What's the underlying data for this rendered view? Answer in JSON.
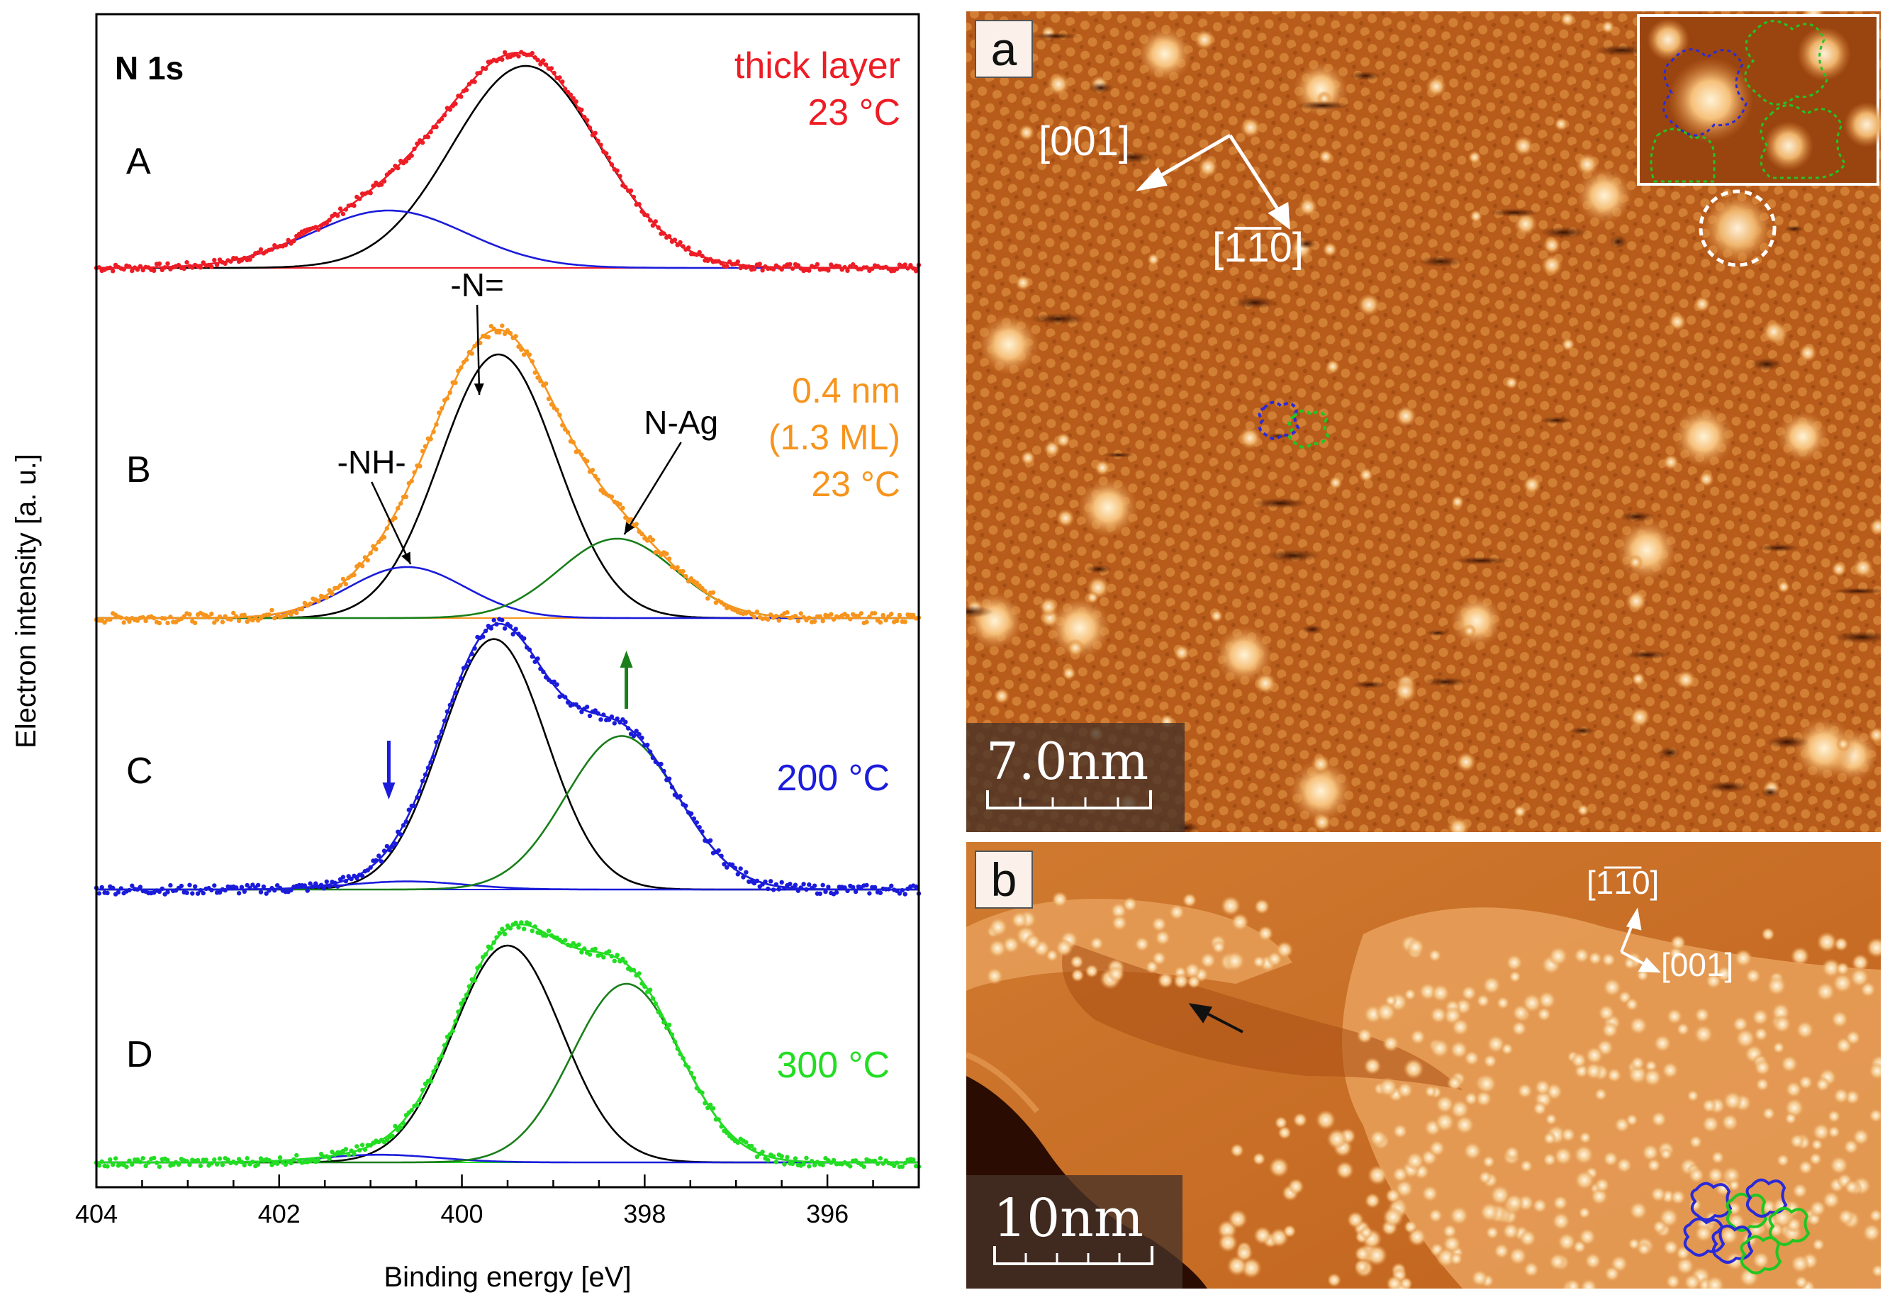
{
  "chart_data": [
    {
      "type": "line",
      "subtype": "stacked XPS spectra with peak fits",
      "corner_label": "N 1s",
      "xlabel": "Binding energy [eV]",
      "ylabel": "Electron intensity [a. u.]",
      "xlim": [
        404,
        395
      ],
      "x_reversed": true,
      "x_ticks": [
        404,
        402,
        400,
        398,
        396
      ],
      "grid": false,
      "panels": [
        {
          "id": "A",
          "label": "A",
          "condition": [
            "thick layer",
            "23 °C"
          ],
          "color": "#ee1c25",
          "envelope_color": "#ee1c25",
          "components": [
            {
              "name": "",
              "center": 399.3,
              "height": 0.95,
              "fwhm": 1.9,
              "color": "#000000"
            },
            {
              "name": "",
              "center": 400.8,
              "height": 0.27,
              "fwhm": 2.0,
              "color": "#1b1bdb"
            }
          ]
        },
        {
          "id": "B",
          "label": "B",
          "condition": [
            "0.4 nm",
            "(1.3 ML)",
            "23 °C"
          ],
          "color": "#f7941d",
          "envelope_color": "#f7941d",
          "components": [
            {
              "name": "-N=",
              "center": 399.6,
              "height": 0.93,
              "fwhm": 1.5,
              "color": "#000000"
            },
            {
              "name": "-NH-",
              "center": 400.6,
              "height": 0.18,
              "fwhm": 1.5,
              "color": "#1b1bdb"
            },
            {
              "name": "N-Ag",
              "center": 398.3,
              "height": 0.28,
              "fwhm": 1.5,
              "color": "#1a7f1a"
            }
          ],
          "peak_annotations": [
            "-N=",
            "-NH-",
            "N-Ag"
          ]
        },
        {
          "id": "C",
          "label": "C",
          "condition": [
            "200 °C"
          ],
          "color": "#1b1bdb",
          "envelope_color": "#1b1bdb",
          "components": [
            {
              "name": "",
              "center": 399.65,
              "height": 0.93,
              "fwhm": 1.35,
              "color": "#000000"
            },
            {
              "name": "",
              "center": 400.6,
              "height": 0.03,
              "fwhm": 1.5,
              "color": "#1b1bdb"
            },
            {
              "name": "",
              "center": 398.25,
              "height": 0.57,
              "fwhm": 1.45,
              "color": "#1a7f1a"
            }
          ],
          "arrows": [
            {
              "x": 400.8,
              "direction": "down",
              "color": "#1b1bdb"
            },
            {
              "x": 398.2,
              "direction": "up",
              "color": "#1a7f1a"
            }
          ]
        },
        {
          "id": "D",
          "label": "D",
          "condition": [
            "300 °C"
          ],
          "color": "#22dd22",
          "envelope_color": "#22dd22",
          "components": [
            {
              "name": "",
              "center": 399.5,
              "height": 0.85,
              "fwhm": 1.4,
              "color": "#000000"
            },
            {
              "name": "",
              "center": 400.9,
              "height": 0.03,
              "fwhm": 1.5,
              "color": "#1b1bdb"
            },
            {
              "name": "",
              "center": 398.2,
              "height": 0.7,
              "fwhm": 1.4,
              "color": "#1a7f1a"
            }
          ]
        }
      ]
    }
  ],
  "stm_images": [
    {
      "id": "a",
      "panel_letter": "a",
      "directions": [
        "[001]",
        "[1̅1̅0]"
      ],
      "scale_bar": "7.0nm",
      "base_color": "#b25a1a",
      "has_inset": true,
      "highlight": "dashed white circle around bright protrusion",
      "outline_colors": [
        "#2a2ad6",
        "#22c522"
      ]
    },
    {
      "id": "b",
      "panel_letter": "b",
      "directions": [
        "[1̅1̅0]",
        "[001]"
      ],
      "scale_bar": "10nm",
      "base_color": "#c2641c",
      "outline_colors": [
        "#2a2ad6",
        "#22c522"
      ]
    }
  ]
}
